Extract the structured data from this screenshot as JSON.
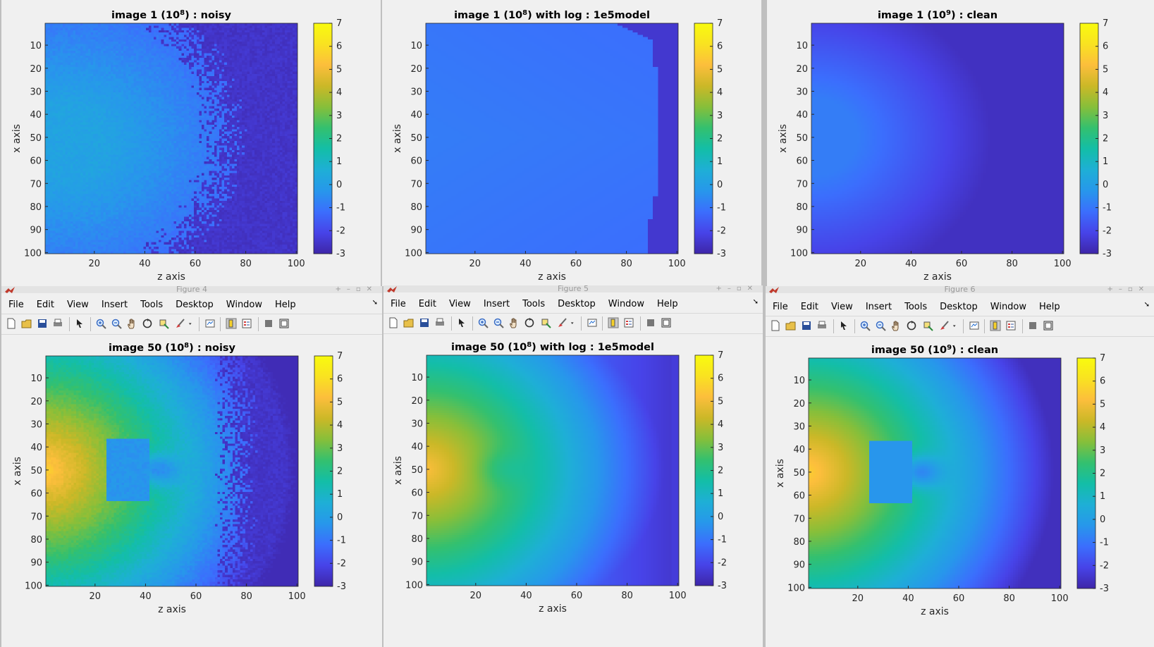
{
  "menu": [
    "File",
    "Edit",
    "View",
    "Insert",
    "Tools",
    "Desktop",
    "Window",
    "Help"
  ],
  "toolbar_icons": [
    "new-file-icon",
    "open-folder-icon",
    "save-icon",
    "print-icon",
    "pointer-icon",
    "zoom-in-icon",
    "zoom-out-icon",
    "pan-hand-icon",
    "rotate-3d-icon",
    "data-cursor-icon",
    "brush-icon",
    "dropdown-arrow-icon",
    "link-plot-icon",
    "colorbar-icon",
    "legend-icon",
    "hide-plot-tools-icon",
    "show-plot-tools-icon"
  ],
  "colormap": [
    "#3e26a8",
    "#4743e8",
    "#3b6efd",
    "#2797eb",
    "#1eafd6",
    "#13bea7",
    "#33c06f",
    "#86bf3a",
    "#cbb827",
    "#fcbe3c",
    "#f9e221",
    "#f9fb0e"
  ],
  "axes": {
    "xlabel": "z axis",
    "ylabel": "x axis",
    "x_ticks": [
      "20",
      "40",
      "60",
      "80",
      "100"
    ],
    "y_ticks": [
      "10",
      "20",
      "30",
      "40",
      "50",
      "60",
      "70",
      "80",
      "90",
      "100"
    ],
    "colorbar_ticks": [
      "7",
      "6",
      "5",
      "4",
      "3",
      "2",
      "1",
      "0",
      "-1",
      "-2",
      "-3"
    ]
  },
  "figures": [
    {
      "id": "fig1",
      "title_pre": "image 1 (10",
      "title_exp": "8",
      "title_post": ") : noisy",
      "window_title": ""
    },
    {
      "id": "fig2",
      "title_pre": "image 1 (10",
      "title_exp": "8",
      "title_post": ") with log : 1e5model",
      "window_title": ""
    },
    {
      "id": "fig3",
      "title_pre": "image 1 (10",
      "title_exp": "9",
      "title_post": ") : clean",
      "window_title": ""
    },
    {
      "id": "fig4",
      "title_pre": "image 50 (10",
      "title_exp": "8",
      "title_post": ") : noisy",
      "window_title": "Figure 4"
    },
    {
      "id": "fig5",
      "title_pre": "image 50 (10",
      "title_exp": "8",
      "title_post": ") with log : 1e5model",
      "window_title": "Figure 5"
    },
    {
      "id": "fig6",
      "title_pre": "image 50 (10",
      "title_exp": "9",
      "title_post": ") : clean",
      "window_title": "Figure 6"
    }
  ],
  "chart_data": [
    {
      "type": "heatmap",
      "title": "image 1 (10^8) : noisy",
      "xlabel": "z axis",
      "ylabel": "x axis",
      "xlim": [
        1,
        100
      ],
      "ylim": [
        1,
        100
      ],
      "clim": [
        -3,
        7
      ],
      "colormap": "parula",
      "pattern": "smooth falloff from left, noisy edge, approx 0 to -3"
    },
    {
      "type": "heatmap",
      "title": "image 1 (10^8) with log : 1e5model",
      "xlabel": "z axis",
      "ylabel": "x axis",
      "xlim": [
        1,
        100
      ],
      "ylim": [
        1,
        100
      ],
      "clim": [
        -3,
        7
      ],
      "colormap": "parula",
      "pattern": "nearly uniform about -1 with sharp dark band at z>90"
    },
    {
      "type": "heatmap",
      "title": "image 1 (10^9) : clean",
      "xlabel": "z axis",
      "ylabel": "x axis",
      "xlim": [
        1,
        100
      ],
      "ylim": [
        1,
        100
      ],
      "clim": [
        -3,
        7
      ],
      "colormap": "parula",
      "pattern": "smooth falloff from left, approx -1 to -3"
    },
    {
      "type": "heatmap",
      "title": "image 50 (10^8) : noisy",
      "xlabel": "z axis",
      "ylabel": "x axis",
      "xlim": [
        1,
        100
      ],
      "ylim": [
        1,
        100
      ],
      "clim": [
        -3,
        7
      ],
      "colormap": "parula",
      "pattern": "source peak about 5.5 at z=1,x=50 with dark inclusion near z=45,x=50, noisy"
    },
    {
      "type": "heatmap",
      "title": "image 50 (10^8) with log : 1e5model",
      "xlabel": "z axis",
      "ylabel": "x axis",
      "xlim": [
        1,
        100
      ],
      "ylim": [
        1,
        100
      ],
      "clim": [
        -3,
        7
      ],
      "colormap": "parula",
      "pattern": "source peak about 5 at z=1,x=50, smooth, faint inclusion"
    },
    {
      "type": "heatmap",
      "title": "image 50 (10^9) : clean",
      "xlabel": "z axis",
      "ylabel": "x axis",
      "xlim": [
        1,
        100
      ],
      "ylim": [
        1,
        100
      ],
      "clim": [
        -3,
        7
      ],
      "colormap": "parula",
      "pattern": "source peak about 5.5 at z=1,x=50 with dark inclusion near z=45,x=50"
    }
  ]
}
